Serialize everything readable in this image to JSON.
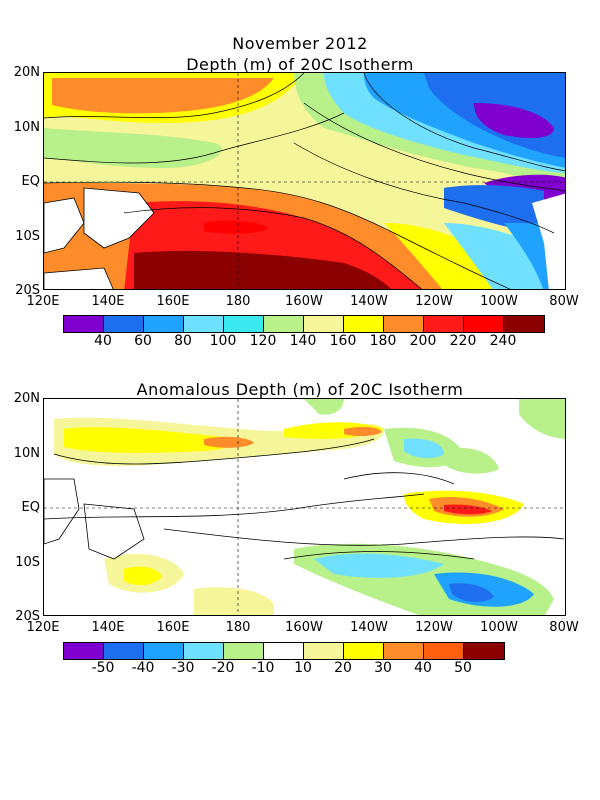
{
  "header": {
    "line1": "November 2012",
    "line2": "Depth (m) of 20C Isotherm"
  },
  "panel2": {
    "title": "Anomalous Depth (m) of 20C Isotherm"
  },
  "axes": {
    "lat_labels": [
      "20N",
      "10N",
      "EQ",
      "10S",
      "20S"
    ],
    "lon_labels": [
      "120E",
      "140E",
      "160E",
      "180",
      "160W",
      "140W",
      "120W",
      "100W",
      "80W"
    ]
  },
  "colorbar1": {
    "labels": [
      "40",
      "60",
      "80",
      "100",
      "120",
      "140",
      "160",
      "180",
      "200",
      "220",
      "240"
    ],
    "colors": [
      "#8000d0",
      "#1e6ef0",
      "#1fa3ff",
      "#6fe0ff",
      "#3ae8f0",
      "#b8f08a",
      "#f5f59a",
      "#ffff00",
      "#ff8c2a",
      "#ff1a1a",
      "#ff0000",
      "#8b0000"
    ]
  },
  "colorbar2": {
    "labels": [
      "-50",
      "-40",
      "-30",
      "-20",
      "-10",
      "10",
      "20",
      "30",
      "40",
      "50"
    ],
    "colors": [
      "#8000d0",
      "#1e6ef0",
      "#1fa3ff",
      "#6fe0ff",
      "#b8f08a",
      "#ffffff",
      "#f5f59a",
      "#ffff00",
      "#ff8c2a",
      "#ff6010",
      "#8b0000"
    ]
  }
}
